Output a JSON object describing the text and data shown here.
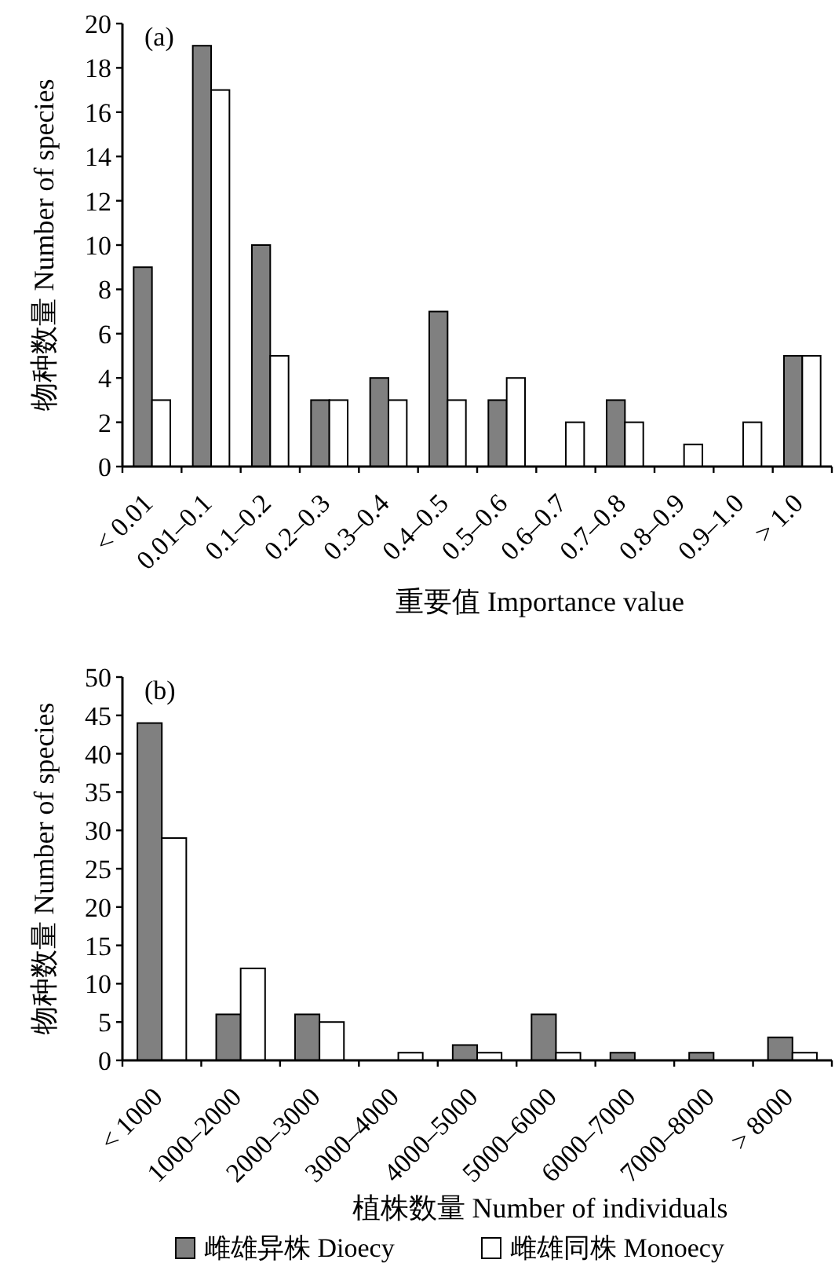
{
  "chart_data": [
    {
      "type": "bar",
      "title": "(a)",
      "xlabel": "重要值 Importance value",
      "ylabel": "物种数量 Number of species",
      "categories": [
        "< 0.01",
        "0.01–0.1",
        "0.1–0.2",
        "0.2–0.3",
        "0.3–0.4",
        "0.4–0.5",
        "0.5–0.6",
        "0.6–0.7",
        "0.7–0.8",
        "0.8–0.9",
        "0.9–1.0",
        "> 1.0"
      ],
      "series": [
        {
          "color": "#808080",
          "values": [
            9,
            19,
            10,
            3,
            4,
            7,
            3,
            0,
            3,
            0,
            0,
            5
          ]
        },
        {
          "color": "#ffffff",
          "values": [
            3,
            17,
            5,
            3,
            3,
            3,
            4,
            2,
            2,
            1,
            2,
            5
          ]
        }
      ],
      "ylim": [
        0,
        20
      ],
      "yticks": [
        0,
        2,
        4,
        6,
        8,
        10,
        12,
        14,
        16,
        18,
        20
      ],
      "grid": false,
      "legend": false
    },
    {
      "type": "bar",
      "title": "(b)",
      "xlabel": "植株数量 Number of  individuals",
      "ylabel": "物种数量 Number of species",
      "categories": [
        "< 1000",
        "1000–2000",
        "2000–3000",
        "3000–4000",
        "4000–5000",
        "5000–6000",
        "6000–7000",
        "7000–8000",
        "> 8000"
      ],
      "series": [
        {
          "name": "雌雄异株 Dioecy",
          "color": "#808080",
          "values": [
            44,
            6,
            6,
            0,
            2,
            6,
            1,
            1,
            3
          ]
        },
        {
          "name": "雌雄同株 Monoecy",
          "color": "#ffffff",
          "values": [
            29,
            12,
            5,
            1,
            1,
            1,
            0,
            0,
            1
          ]
        }
      ],
      "ylim": [
        0,
        50
      ],
      "yticks": [
        0,
        5,
        10,
        15,
        20,
        25,
        30,
        35,
        40,
        45,
        50
      ],
      "grid": false,
      "legend": "bottom"
    }
  ]
}
